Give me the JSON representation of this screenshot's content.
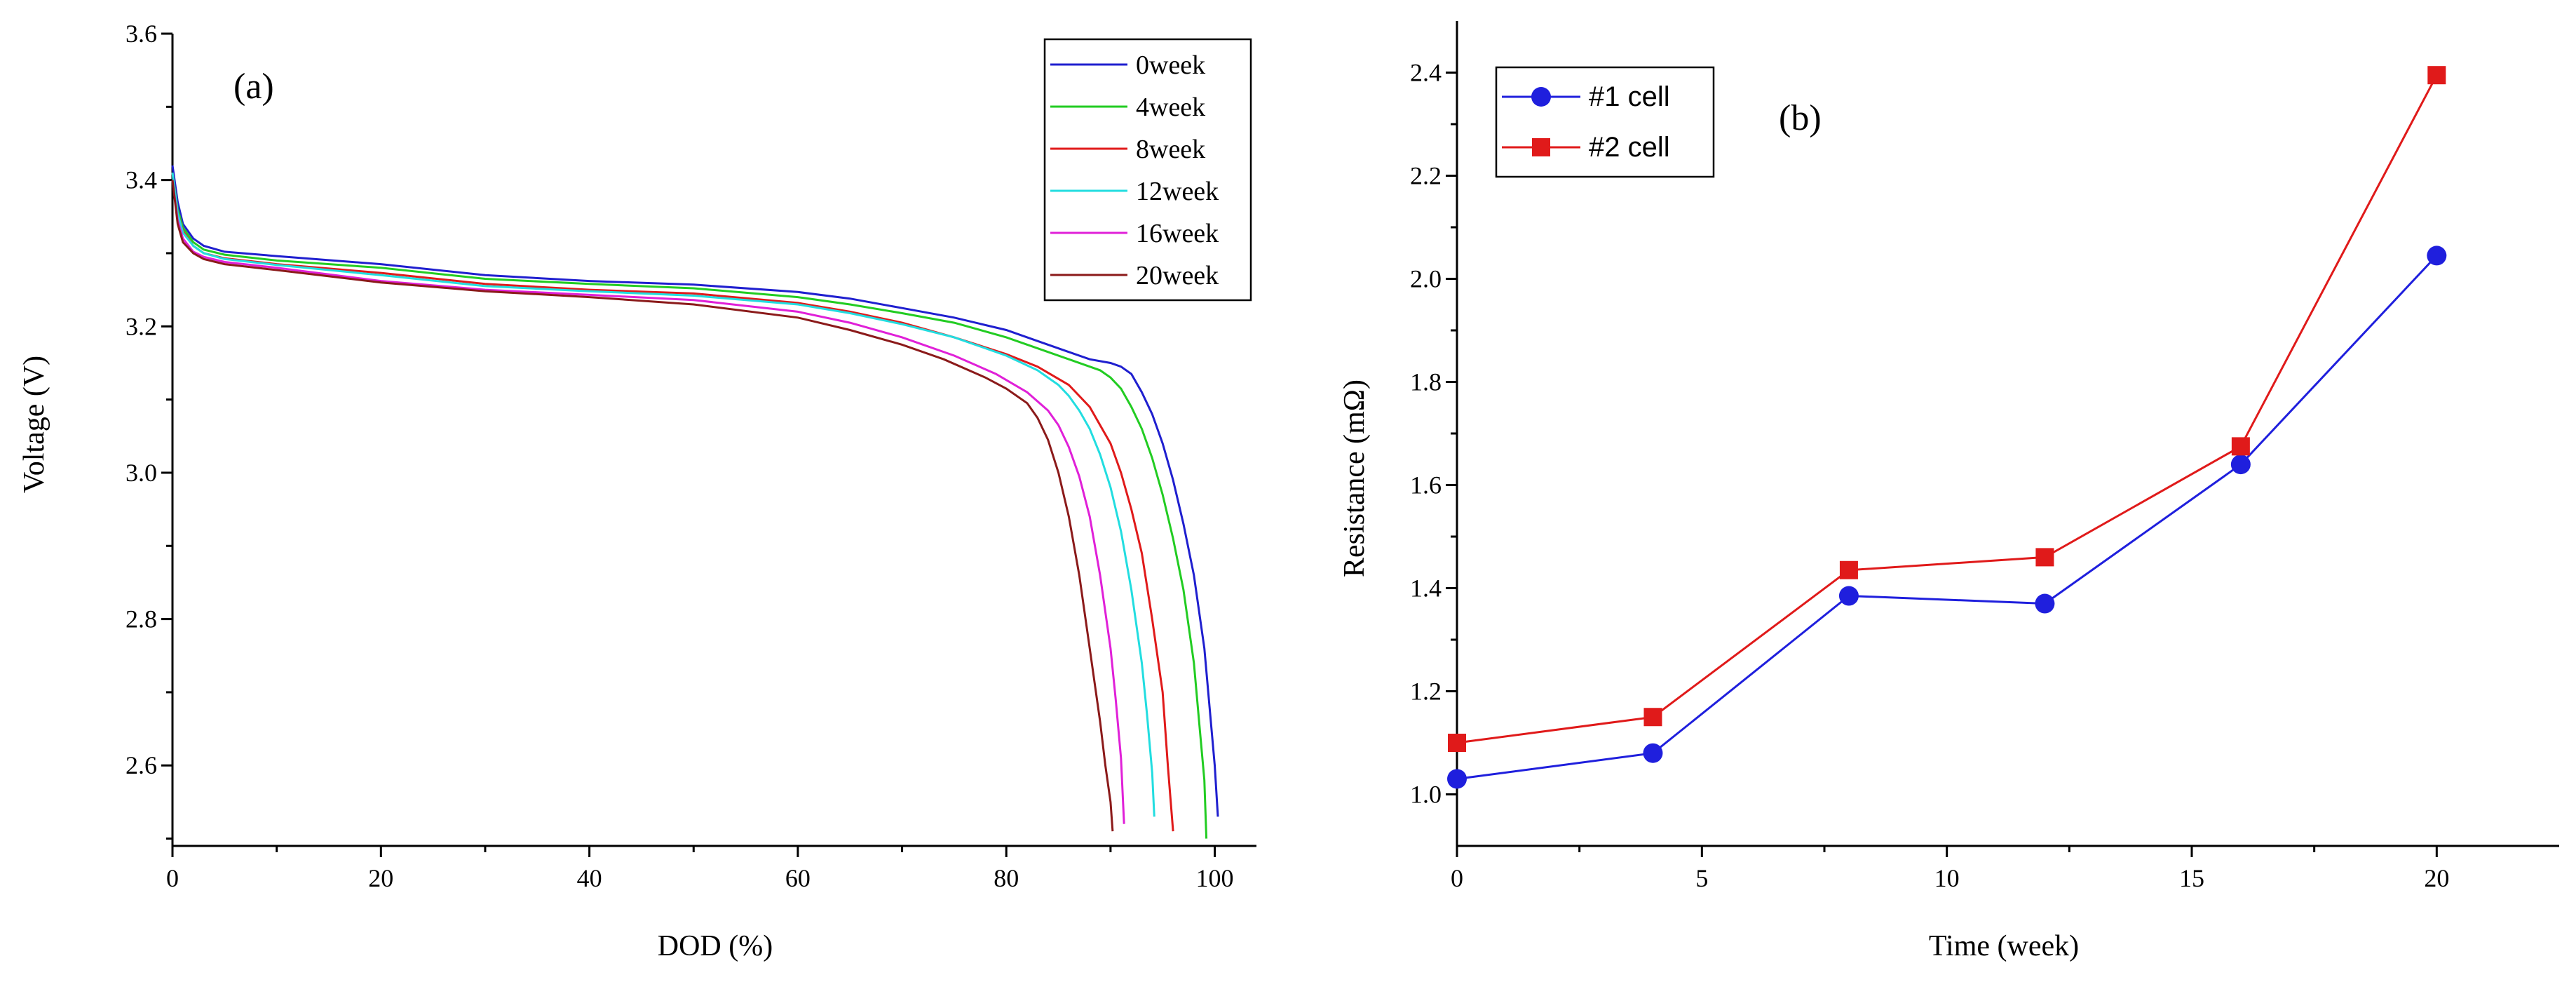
{
  "chart_data": [
    {
      "type": "line",
      "panel_label": "(a)",
      "xlabel": "DOD (%)",
      "ylabel": "Voltage (V)",
      "xlim": [
        0,
        104
      ],
      "ylim": [
        2.49,
        3.6
      ],
      "xticks": [
        0,
        20,
        40,
        60,
        80,
        100
      ],
      "yticks": [
        2.6,
        2.8,
        3.0,
        3.2,
        3.4,
        3.6
      ],
      "ytick_labels": [
        "2.6",
        "2.8",
        "3.0",
        "3.2",
        "3.4",
        "3.6"
      ],
      "legend_position": "top-right",
      "grid": false,
      "series": [
        {
          "name": "0week",
          "color": "#1f1fcf",
          "x": [
            0,
            0.5,
            1,
            2,
            3,
            5,
            10,
            20,
            30,
            40,
            50,
            60,
            65,
            70,
            75,
            80,
            83,
            86,
            88,
            90,
            91,
            92,
            93,
            94,
            95,
            96,
            97,
            98,
            99,
            99.5,
            100,
            100.3
          ],
          "y": [
            3.42,
            3.37,
            3.34,
            3.32,
            3.31,
            3.302,
            3.296,
            3.285,
            3.27,
            3.262,
            3.257,
            3.247,
            3.238,
            3.225,
            3.212,
            3.195,
            3.18,
            3.165,
            3.155,
            3.15,
            3.145,
            3.135,
            3.11,
            3.08,
            3.04,
            2.99,
            2.93,
            2.86,
            2.76,
            2.68,
            2.6,
            2.53
          ]
        },
        {
          "name": "4week",
          "color": "#22cc22",
          "x": [
            0,
            0.5,
            1,
            2,
            3,
            5,
            10,
            20,
            30,
            40,
            50,
            60,
            65,
            70,
            75,
            80,
            83,
            86,
            88,
            89,
            90,
            91,
            92,
            93,
            94,
            95,
            96,
            97,
            98,
            98.5,
            99,
            99.2
          ],
          "y": [
            3.41,
            3.36,
            3.335,
            3.315,
            3.305,
            3.298,
            3.29,
            3.28,
            3.265,
            3.258,
            3.252,
            3.24,
            3.23,
            3.218,
            3.205,
            3.185,
            3.17,
            3.155,
            3.145,
            3.14,
            3.13,
            3.115,
            3.09,
            3.06,
            3.02,
            2.97,
            2.91,
            2.84,
            2.74,
            2.66,
            2.58,
            2.5
          ]
        },
        {
          "name": "8week",
          "color": "#e01a1a",
          "x": [
            0,
            0.5,
            1,
            2,
            3,
            5,
            10,
            20,
            30,
            40,
            50,
            60,
            65,
            70,
            75,
            80,
            83,
            86,
            88,
            89,
            90,
            91,
            92,
            93,
            94,
            95,
            95.5,
            96
          ],
          "y": [
            3.41,
            3.355,
            3.33,
            3.31,
            3.3,
            3.293,
            3.285,
            3.273,
            3.258,
            3.25,
            3.245,
            3.232,
            3.22,
            3.205,
            3.185,
            3.162,
            3.145,
            3.12,
            3.09,
            3.065,
            3.04,
            3.0,
            2.95,
            2.89,
            2.8,
            2.7,
            2.6,
            2.51
          ]
        },
        {
          "name": "12week",
          "color": "#22dde0",
          "x": [
            0,
            0.5,
            1,
            2,
            3,
            5,
            10,
            20,
            30,
            40,
            50,
            60,
            65,
            70,
            75,
            80,
            83,
            85,
            86,
            87,
            88,
            89,
            90,
            91,
            92,
            93,
            93.5,
            94,
            94.2
          ],
          "y": [
            3.41,
            3.355,
            3.328,
            3.31,
            3.3,
            3.292,
            3.284,
            3.27,
            3.255,
            3.248,
            3.242,
            3.23,
            3.218,
            3.203,
            3.185,
            3.16,
            3.14,
            3.12,
            3.105,
            3.085,
            3.06,
            3.025,
            2.98,
            2.92,
            2.84,
            2.74,
            2.67,
            2.59,
            2.53
          ]
        },
        {
          "name": "16week",
          "color": "#e020d8",
          "x": [
            0,
            0.5,
            1,
            2,
            3,
            5,
            10,
            20,
            30,
            40,
            50,
            60,
            65,
            70,
            75,
            79,
            82,
            84,
            85,
            86,
            87,
            88,
            89,
            90,
            90.5,
            91,
            91.3
          ],
          "y": [
            3.4,
            3.345,
            3.32,
            3.302,
            3.295,
            3.288,
            3.28,
            3.262,
            3.25,
            3.243,
            3.236,
            3.22,
            3.205,
            3.185,
            3.16,
            3.135,
            3.11,
            3.085,
            3.065,
            3.035,
            2.995,
            2.94,
            2.86,
            2.76,
            2.69,
            2.61,
            2.52
          ]
        },
        {
          "name": "20week",
          "color": "#8b1a1a",
          "x": [
            0,
            0.5,
            1,
            2,
            3,
            5,
            10,
            20,
            30,
            40,
            50,
            60,
            65,
            70,
            74,
            78,
            80,
            82,
            83,
            84,
            85,
            86,
            87,
            88,
            89,
            89.5,
            90,
            90.2
          ],
          "y": [
            3.4,
            3.34,
            3.315,
            3.3,
            3.292,
            3.285,
            3.277,
            3.26,
            3.248,
            3.24,
            3.23,
            3.212,
            3.195,
            3.175,
            3.155,
            3.13,
            3.115,
            3.095,
            3.075,
            3.045,
            3.0,
            2.94,
            2.86,
            2.76,
            2.66,
            2.6,
            2.55,
            2.51
          ]
        }
      ]
    },
    {
      "type": "line",
      "panel_label": "(b)",
      "xlabel": "Time (week)",
      "ylabel": "Resistance (mΩ)",
      "xlim": [
        0,
        22.5
      ],
      "ylim": [
        0.9,
        2.5
      ],
      "xticks": [
        0,
        5,
        10,
        15,
        20
      ],
      "yticks": [
        1.0,
        1.2,
        1.4,
        1.6,
        1.8,
        2.0,
        2.2,
        2.4
      ],
      "ytick_labels": [
        "1.0",
        "1.2",
        "1.4",
        "1.6",
        "1.8",
        "2.0",
        "2.2",
        "2.4"
      ],
      "legend_position": "top-left",
      "grid": false,
      "series": [
        {
          "name": "#1 cell",
          "color": "#1f1fdd",
          "marker": "circle",
          "x": [
            0,
            4,
            8,
            12,
            16,
            20
          ],
          "y": [
            1.03,
            1.08,
            1.385,
            1.37,
            1.64,
            2.045
          ]
        },
        {
          "name": "#2 cell",
          "color": "#e01a1a",
          "marker": "square",
          "x": [
            0,
            4,
            8,
            12,
            16,
            20
          ],
          "y": [
            1.1,
            1.15,
            1.435,
            1.46,
            1.675,
            2.395
          ]
        }
      ]
    }
  ]
}
